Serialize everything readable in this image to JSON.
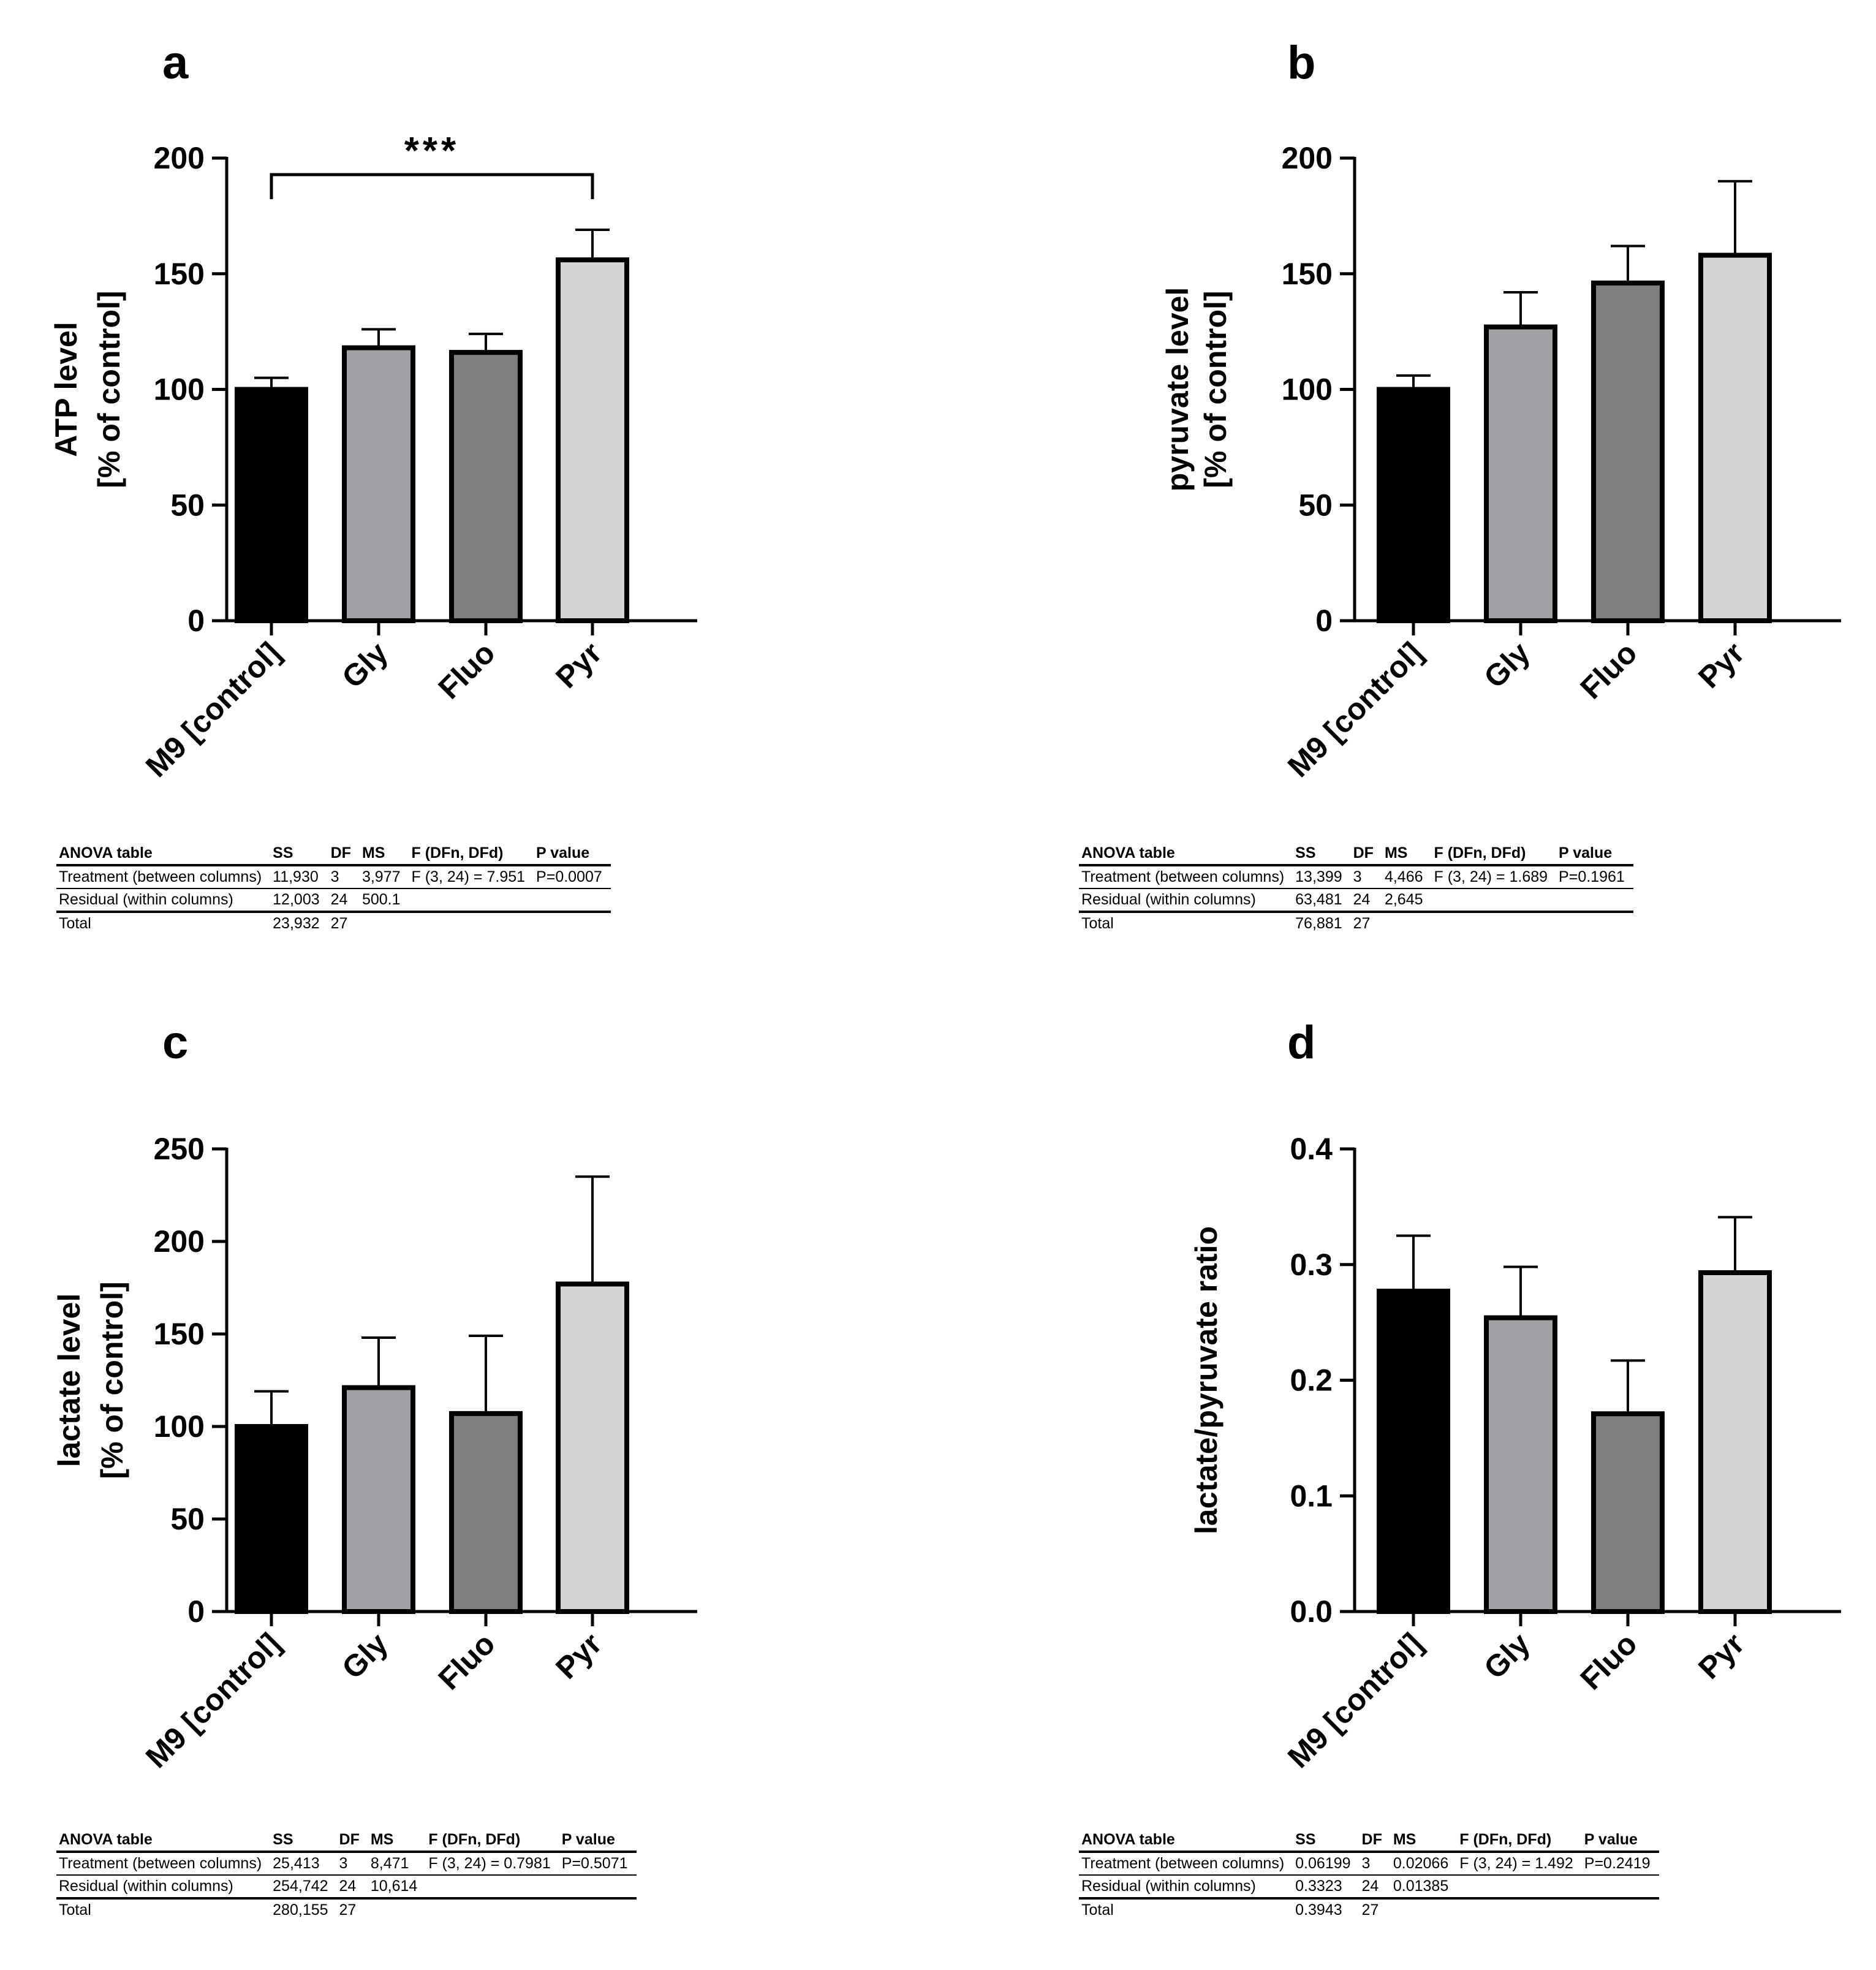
{
  "chart_data": [
    {
      "id": "a",
      "letter": "a",
      "type": "bar",
      "ylabel_lines": [
        "ATP level",
        "[% of control]"
      ],
      "categories": [
        "M9 [control]",
        "Gly",
        "Fluo",
        "Pyr"
      ],
      "values": [
        100,
        118,
        116,
        156
      ],
      "errors": [
        5,
        8,
        8,
        13
      ],
      "colors": [
        "#000000",
        "#a1a1a5",
        "#7f7f7f",
        "#d4d4d4"
      ],
      "ylim": [
        0,
        200
      ],
      "yticks": [
        "0",
        "50",
        "100",
        "150",
        "200"
      ],
      "significance": {
        "label": "***",
        "from": 0,
        "to": 3
      },
      "anova": {
        "headers": [
          "ANOVA table",
          "SS",
          "DF",
          "MS",
          "F (DFn, DFd)",
          "P value"
        ],
        "rows": [
          [
            "Treatment (between columns)",
            "11,930",
            "3",
            "3,977",
            "F (3, 24) = 7.951",
            "P=0.0007"
          ],
          [
            "Residual (within columns)",
            "12,003",
            "24",
            "500.1",
            "",
            ""
          ],
          [
            "Total",
            "23,932",
            "27",
            "",
            "",
            ""
          ]
        ]
      }
    },
    {
      "id": "b",
      "letter": "b",
      "type": "bar",
      "ylabel_lines": [
        "pyruvate level",
        "[% of control]"
      ],
      "categories": [
        "M9 [control]",
        "Gly",
        "Fluo",
        "Pyr"
      ],
      "values": [
        100,
        127,
        146,
        158
      ],
      "errors": [
        6,
        15,
        16,
        32
      ],
      "colors": [
        "#000000",
        "#a1a1a5",
        "#7f7f7f",
        "#d4d4d4"
      ],
      "ylim": [
        0,
        200
      ],
      "yticks": [
        "0",
        "50",
        "100",
        "150",
        "200"
      ],
      "anova": {
        "headers": [
          "ANOVA table",
          "SS",
          "DF",
          "MS",
          "F (DFn, DFd)",
          "P value"
        ],
        "rows": [
          [
            "Treatment (between columns)",
            "13,399",
            "3",
            "4,466",
            "F (3, 24) = 1.689",
            "P=0.1961"
          ],
          [
            "Residual (within columns)",
            "63,481",
            "24",
            "2,645",
            "",
            ""
          ],
          [
            "Total",
            "76,881",
            "27",
            "",
            "",
            ""
          ]
        ]
      }
    },
    {
      "id": "c",
      "letter": "c",
      "type": "bar",
      "ylabel_lines": [
        "lactate level",
        "[% of control]"
      ],
      "categories": [
        "M9 [control]",
        "Gly",
        "Fluo",
        "Pyr"
      ],
      "values": [
        100,
        121,
        107,
        177
      ],
      "errors": [
        19,
        27,
        42,
        58
      ],
      "colors": [
        "#000000",
        "#a1a1a5",
        "#7f7f7f",
        "#d4d4d4"
      ],
      "ylim": [
        0,
        250
      ],
      "yticks": [
        "0",
        "50",
        "100",
        "150",
        "200",
        "250"
      ],
      "anova": {
        "headers": [
          "ANOVA table",
          "SS",
          "DF",
          "MS",
          "F (DFn, DFd)",
          "P value"
        ],
        "rows": [
          [
            "Treatment (between columns)",
            "25,413",
            "3",
            "8,471",
            "F (3, 24) = 0.7981",
            "P=0.5071"
          ],
          [
            "Residual (within columns)",
            "254,742",
            "24",
            "10,614",
            "",
            ""
          ],
          [
            "Total",
            "280,155",
            "27",
            "",
            "",
            ""
          ]
        ]
      }
    },
    {
      "id": "d",
      "letter": "d",
      "type": "bar",
      "ylabel_lines": [
        "lactate/pyruvate ratio"
      ],
      "categories": [
        "M9 [control]",
        "Gly",
        "Fluo",
        "Pyr"
      ],
      "values": [
        0.277,
        0.254,
        0.171,
        0.293
      ],
      "errors": [
        0.048,
        0.044,
        0.046,
        0.048
      ],
      "colors": [
        "#000000",
        "#a1a1a5",
        "#7f7f7f",
        "#d4d4d4"
      ],
      "ylim": [
        0,
        0.4
      ],
      "yticks": [
        "0.0",
        "0.1",
        "0.2",
        "0.3",
        "0.4"
      ],
      "anova": {
        "headers": [
          "ANOVA table",
          "SS",
          "DF",
          "MS",
          "F (DFn, DFd)",
          "P value"
        ],
        "rows": [
          [
            "Treatment (between columns)",
            "0.06199",
            "3",
            "0.02066",
            "F (3, 24) = 1.492",
            "P=0.2419"
          ],
          [
            "Residual (within columns)",
            "0.3323",
            "24",
            "0.01385",
            "",
            ""
          ],
          [
            "Total",
            "0.3943",
            "27",
            "",
            "",
            ""
          ]
        ]
      }
    }
  ]
}
